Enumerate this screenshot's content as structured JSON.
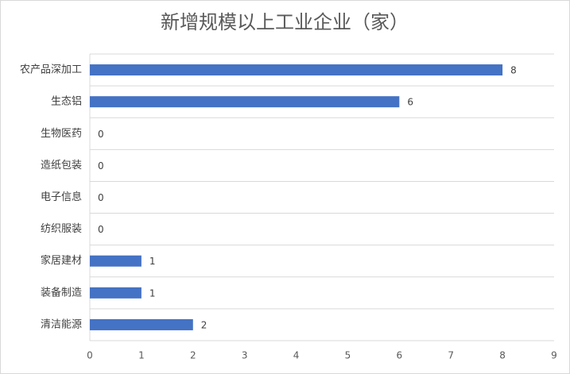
{
  "chart_data": {
    "type": "hbar",
    "title": "新增规模以上工业企业（家）",
    "categories": [
      "农产品深加工",
      "生态铝",
      "生物医药",
      "造纸包装",
      "电子信息",
      "纺织服装",
      "家居建材",
      "装备制造",
      "清洁能源"
    ],
    "values": [
      8,
      6,
      0,
      0,
      0,
      0,
      1,
      1,
      2
    ],
    "color": "#4472c4",
    "xlim": [
      0,
      9
    ],
    "xticks": [
      0,
      1,
      2,
      3,
      4,
      5,
      6,
      7,
      8,
      9
    ]
  }
}
